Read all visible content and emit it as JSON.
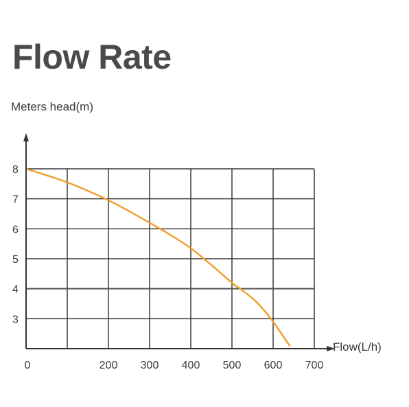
{
  "chart_data": {
    "type": "line",
    "title": "Flow Rate",
    "xlabel": "Flow(L/h)",
    "ylabel": "Meters head(m)",
    "x_ticks": [
      "0",
      "200",
      "300",
      "400",
      "500",
      "600",
      "700"
    ],
    "y_ticks": [
      "3",
      "4",
      "5",
      "6",
      "7",
      "8"
    ],
    "xlim": [
      0,
      700
    ],
    "ylim": [
      2,
      8
    ],
    "grid": true,
    "reference_line": {
      "y": 4.0
    },
    "series": [
      {
        "color": "#f0a030",
        "x": [
          0,
          100,
          200,
          300,
          400,
          500,
          520,
          560,
          600,
          640
        ],
        "y": [
          8.0,
          7.55,
          6.95,
          6.2,
          5.35,
          4.2,
          4.0,
          3.55,
          2.9,
          2.1
        ]
      }
    ]
  }
}
